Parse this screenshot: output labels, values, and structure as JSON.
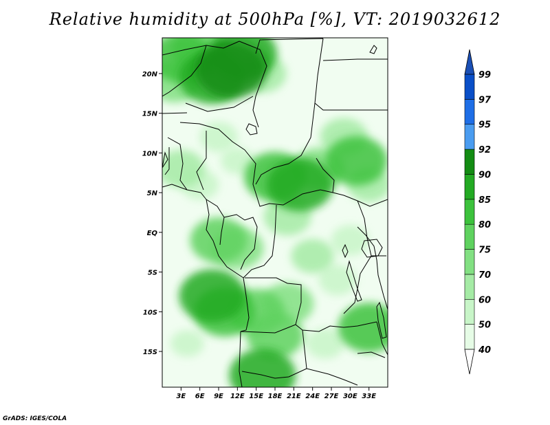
{
  "title": "Relative humidity at 500hPa [%], VT: 2019032612",
  "credit": "GrADS: IGES/COLA",
  "map": {
    "lon_range": [
      0,
      36
    ],
    "lat_range": [
      -19.5,
      24.5
    ],
    "lon_ticks": [
      {
        "value": 3,
        "label": "3E"
      },
      {
        "value": 6,
        "label": "6E"
      },
      {
        "value": 9,
        "label": "9E"
      },
      {
        "value": 12,
        "label": "12E"
      },
      {
        "value": 15,
        "label": "15E"
      },
      {
        "value": 18,
        "label": "18E"
      },
      {
        "value": 21,
        "label": "21E"
      },
      {
        "value": 24,
        "label": "24E"
      },
      {
        "value": 27,
        "label": "27E"
      },
      {
        "value": 30,
        "label": "30E"
      },
      {
        "value": 33,
        "label": "33E"
      }
    ],
    "lat_ticks": [
      {
        "value": 20,
        "label": "20N"
      },
      {
        "value": 15,
        "label": "15N"
      },
      {
        "value": 10,
        "label": "10N"
      },
      {
        "value": 5,
        "label": "5N"
      },
      {
        "value": 0,
        "label": "EQ"
      },
      {
        "value": -5,
        "label": "5S"
      },
      {
        "value": -10,
        "label": "10S"
      },
      {
        "value": -15,
        "label": "15S"
      }
    ]
  },
  "colorbar": {
    "levels": [
      "40",
      "50",
      "60",
      "70",
      "75",
      "80",
      "85",
      "90",
      "92",
      "95",
      "97",
      "99"
    ],
    "colors": [
      "#ffffff",
      "#e6fce6",
      "#c8f5c8",
      "#a5eba5",
      "#82e082",
      "#5fd25f",
      "#3cc23c",
      "#23aa23",
      "#138c13",
      "#4a9cf0",
      "#1e6ee6",
      "#0a4fc8",
      "#1a4fb5"
    ]
  },
  "humidity_field": [
    {
      "lon": 3,
      "lat": 22,
      "rh": 80
    },
    {
      "lon": 8,
      "lat": 19.5,
      "rh": 85
    },
    {
      "lon": 11,
      "lat": 20.5,
      "rh": 90
    },
    {
      "lon": 13,
      "lat": 22.5,
      "rh": 85
    },
    {
      "lon": 6,
      "lat": 23,
      "rh": 75
    },
    {
      "lon": 16,
      "lat": 20,
      "rh": 65
    },
    {
      "lon": 2,
      "lat": 19,
      "rh": 70
    },
    {
      "lon": 3,
      "lat": 8,
      "rh": 65
    },
    {
      "lon": 6,
      "lat": 6,
      "rh": 55
    },
    {
      "lon": 9,
      "lat": 12,
      "rh": 55
    },
    {
      "lon": 12,
      "lat": 9,
      "rh": 50
    },
    {
      "lon": 18,
      "lat": 7,
      "rh": 80
    },
    {
      "lon": 22,
      "lat": 6,
      "rh": 85
    },
    {
      "lon": 25,
      "lat": 8,
      "rh": 70
    },
    {
      "lon": 31,
      "lat": 9,
      "rh": 80
    },
    {
      "lon": 29,
      "lat": 12,
      "rh": 65
    },
    {
      "lon": 33,
      "lat": 6,
      "rh": 60
    },
    {
      "lon": 9,
      "lat": -1,
      "rh": 75
    },
    {
      "lon": 12,
      "lat": -2,
      "rh": 70
    },
    {
      "lon": 8,
      "lat": -8,
      "rh": 85
    },
    {
      "lon": 10,
      "lat": -10,
      "rh": 80
    },
    {
      "lon": 15,
      "lat": -10,
      "rh": 75
    },
    {
      "lon": 20,
      "lat": -9,
      "rh": 70
    },
    {
      "lon": 18,
      "lat": -13,
      "rh": 75
    },
    {
      "lon": 24,
      "lat": -3,
      "rh": 60
    },
    {
      "lon": 28,
      "lat": -6,
      "rh": 55
    },
    {
      "lon": 33,
      "lat": -12,
      "rh": 80
    },
    {
      "lon": 30,
      "lat": -1,
      "rh": 55
    },
    {
      "lon": 16,
      "lat": -18,
      "rh": 85
    },
    {
      "lon": 20,
      "lat": 2,
      "rh": 65
    },
    {
      "lon": 4,
      "lat": -14,
      "rh": 50
    },
    {
      "lon": 26,
      "lat": -14,
      "rh": 55
    }
  ]
}
